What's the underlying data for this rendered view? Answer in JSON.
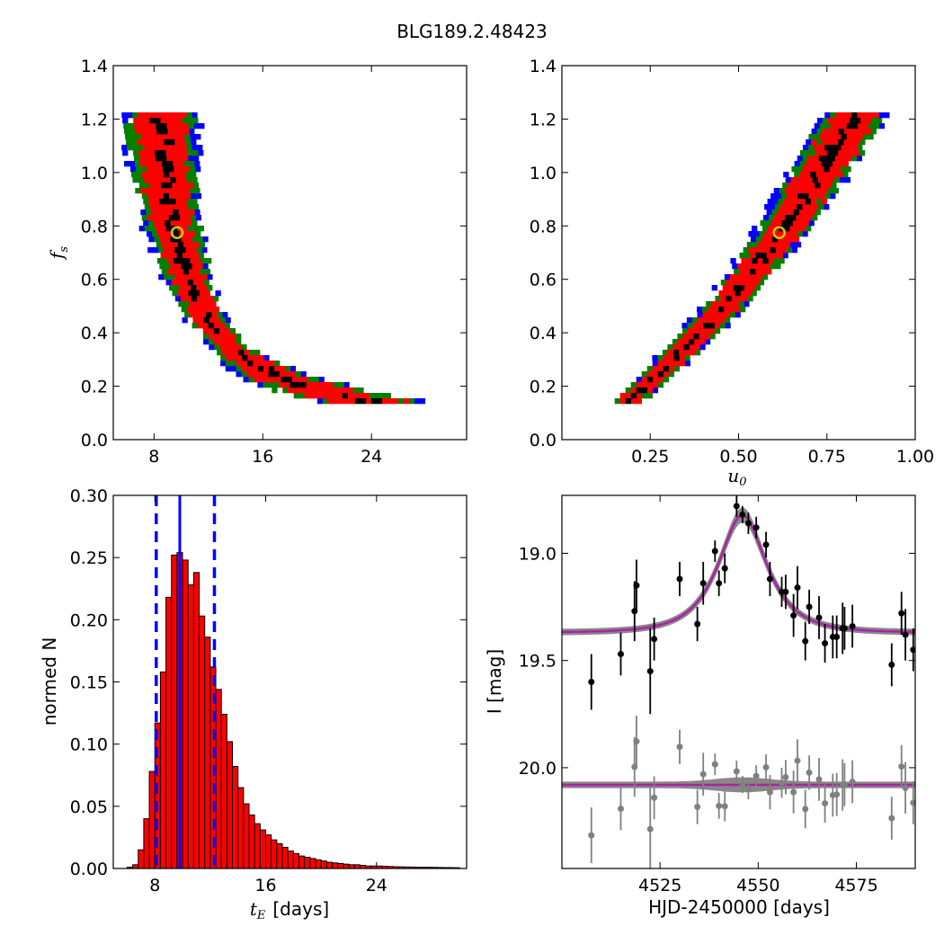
{
  "figure": {
    "title": "BLG189.2.48423"
  },
  "chart_data": [
    {
      "id": "fs_vs_tE",
      "type": "heatmap",
      "xlim": [
        5,
        31
      ],
      "ylim": [
        0.0,
        1.4
      ],
      "xticks": [
        8,
        16,
        24
      ],
      "xtick_labels": [
        "8",
        "16",
        "24"
      ],
      "yticks": [
        0.0,
        0.2,
        0.4,
        0.6,
        0.8,
        1.0,
        1.2,
        1.4
      ],
      "ytick_labels": [
        "0.0",
        "0.2",
        "0.4",
        "0.6",
        "0.8",
        "1.0",
        "1.2",
        "1.4"
      ],
      "xlabel": "",
      "ylabel_main": "f",
      "ylabel_sub": "s",
      "confidence_colors": {
        "best": "#000000",
        "one_sigma": "#ff0000",
        "two_sigma": "#008000",
        "three_sigma": "#0000ff"
      },
      "ridge_points": [
        [
          8.3,
          1.22
        ],
        [
          8.6,
          1.0
        ],
        [
          9.2,
          0.8
        ],
        [
          10.4,
          0.6
        ],
        [
          11.8,
          0.45
        ],
        [
          14.0,
          0.33
        ],
        [
          17.0,
          0.24
        ],
        [
          21.0,
          0.18
        ],
        [
          25.0,
          0.14
        ]
      ],
      "best_fit": {
        "x": 9.7,
        "y": 0.775,
        "color": "#cccc00"
      }
    },
    {
      "id": "fs_vs_u0",
      "type": "heatmap",
      "xlim": [
        0.0,
        1.0
      ],
      "ylim": [
        0.0,
        1.4
      ],
      "xticks": [
        0.25,
        0.5,
        0.75,
        1.0
      ],
      "xtick_labels": [
        "0.25",
        "0.50",
        "0.75",
        "1.00"
      ],
      "yticks": [
        0.0,
        0.2,
        0.4,
        0.6,
        0.8,
        1.0,
        1.2,
        1.4
      ],
      "ytick_labels": [
        "0.0",
        "0.2",
        "0.4",
        "0.6",
        "0.8",
        "1.0",
        "1.2",
        "1.4"
      ],
      "xlabel_main": "u",
      "xlabel_sub": "0",
      "ridge_points": [
        [
          0.17,
          0.14
        ],
        [
          0.3,
          0.3
        ],
        [
          0.45,
          0.5
        ],
        [
          0.6,
          0.76
        ],
        [
          0.72,
          1.0
        ],
        [
          0.82,
          1.22
        ]
      ],
      "best_fit": {
        "x": 0.615,
        "y": 0.775,
        "color": "#cccc00"
      }
    },
    {
      "id": "tE_histogram",
      "type": "bar",
      "xlim": [
        5,
        30.5
      ],
      "ylim": [
        0.0,
        0.3
      ],
      "xticks": [
        8,
        16,
        24
      ],
      "xtick_labels": [
        "8",
        "16",
        "24"
      ],
      "yticks": [
        0.0,
        0.05,
        0.1,
        0.15,
        0.2,
        0.25,
        0.3
      ],
      "ytick_labels": [
        "0.00",
        "0.05",
        "0.10",
        "0.15",
        "0.20",
        "0.25",
        "0.30"
      ],
      "xlabel_main": "t",
      "xlabel_sub": "E",
      "xlabel_suffix": "[days]",
      "ylabel": "normed N",
      "bar_color": "#ff0000",
      "bin_start": 6.0,
      "bin_width": 0.4,
      "values": [
        0.001,
        0.003,
        0.015,
        0.04,
        0.078,
        0.117,
        0.158,
        0.218,
        0.252,
        0.254,
        0.248,
        0.228,
        0.238,
        0.203,
        0.186,
        0.162,
        0.144,
        0.124,
        0.102,
        0.082,
        0.065,
        0.052,
        0.043,
        0.036,
        0.031,
        0.027,
        0.023,
        0.02,
        0.017,
        0.014,
        0.012,
        0.01,
        0.009,
        0.008,
        0.007,
        0.006,
        0.005,
        0.0045,
        0.004,
        0.0035,
        0.003,
        0.003,
        0.0025,
        0.002,
        0.002,
        0.002,
        0.0018,
        0.0016,
        0.0014,
        0.0013,
        0.0012,
        0.0011,
        0.001,
        0.001,
        0.001,
        0.0009,
        0.0008,
        0.0007,
        0.0007,
        0.0006
      ],
      "median": 9.8,
      "lower": 8.1,
      "upper": 12.3,
      "line_color": "#0000ff"
    },
    {
      "id": "light_curve",
      "type": "scatter",
      "xlim": [
        4500,
        4590
      ],
      "ylim": [
        20.47,
        18.73
      ],
      "xticks": [
        4525,
        4550,
        4575
      ],
      "xtick_labels": [
        "4525",
        "4550",
        "4575"
      ],
      "yticks": [
        19.0,
        19.5,
        20.0
      ],
      "ytick_labels": [
        "19.0",
        "19.5",
        "20.0"
      ],
      "xlabel": "HJD-2450000 [days]",
      "ylabel": "I [mag]",
      "model_color": "#aa22aa",
      "band_color": "#888888",
      "model": {
        "t0": 4546.0,
        "tE": 9.8,
        "u0": 0.615,
        "fs": 0.775,
        "baseline": 19.37
      },
      "residual_offset": 20.08,
      "points": [
        {
          "x": 4507.5,
          "y": 19.6,
          "err": 0.13
        },
        {
          "x": 4515.0,
          "y": 19.47,
          "err": 0.1
        },
        {
          "x": 4518.5,
          "y": 19.27,
          "err": 0.14
        },
        {
          "x": 4519.0,
          "y": 19.15,
          "err": 0.12
        },
        {
          "x": 4522.5,
          "y": 19.55,
          "err": 0.2
        },
        {
          "x": 4523.5,
          "y": 19.4,
          "err": 0.1
        },
        {
          "x": 4530.0,
          "y": 19.12,
          "err": 0.08
        },
        {
          "x": 4534.5,
          "y": 19.33,
          "err": 0.08
        },
        {
          "x": 4536.0,
          "y": 19.14,
          "err": 0.1
        },
        {
          "x": 4539.0,
          "y": 18.99,
          "err": 0.05
        },
        {
          "x": 4540.0,
          "y": 19.14,
          "err": 0.06
        },
        {
          "x": 4541.5,
          "y": 19.07,
          "err": 0.07
        },
        {
          "x": 4544.5,
          "y": 18.78,
          "err": 0.05
        },
        {
          "x": 4546.0,
          "y": 18.82,
          "err": 0.04
        },
        {
          "x": 4547.5,
          "y": 18.86,
          "err": 0.05
        },
        {
          "x": 4549.5,
          "y": 18.88,
          "err": 0.05
        },
        {
          "x": 4552.0,
          "y": 18.96,
          "err": 0.06
        },
        {
          "x": 4553.0,
          "y": 19.12,
          "err": 0.08
        },
        {
          "x": 4556.0,
          "y": 19.18,
          "err": 0.07
        },
        {
          "x": 4557.0,
          "y": 19.18,
          "err": 0.08
        },
        {
          "x": 4559.0,
          "y": 19.29,
          "err": 0.1
        },
        {
          "x": 4560.0,
          "y": 19.16,
          "err": 0.1
        },
        {
          "x": 4562.0,
          "y": 19.41,
          "err": 0.09
        },
        {
          "x": 4563.0,
          "y": 19.25,
          "err": 0.08
        },
        {
          "x": 4565.5,
          "y": 19.3,
          "err": 0.1
        },
        {
          "x": 4567.0,
          "y": 19.42,
          "err": 0.09
        },
        {
          "x": 4569.0,
          "y": 19.39,
          "err": 0.1
        },
        {
          "x": 4570.0,
          "y": 19.39,
          "err": 0.1
        },
        {
          "x": 4571.5,
          "y": 19.35,
          "err": 0.12
        },
        {
          "x": 4572.0,
          "y": 19.35,
          "err": 0.1
        },
        {
          "x": 4574.0,
          "y": 19.34,
          "err": 0.1
        },
        {
          "x": 4584.0,
          "y": 19.52,
          "err": 0.1
        },
        {
          "x": 4586.5,
          "y": 19.28,
          "err": 0.1
        },
        {
          "x": 4587.5,
          "y": 19.38,
          "err": 0.12
        },
        {
          "x": 4589.5,
          "y": 19.45,
          "err": 0.1
        }
      ]
    }
  ]
}
